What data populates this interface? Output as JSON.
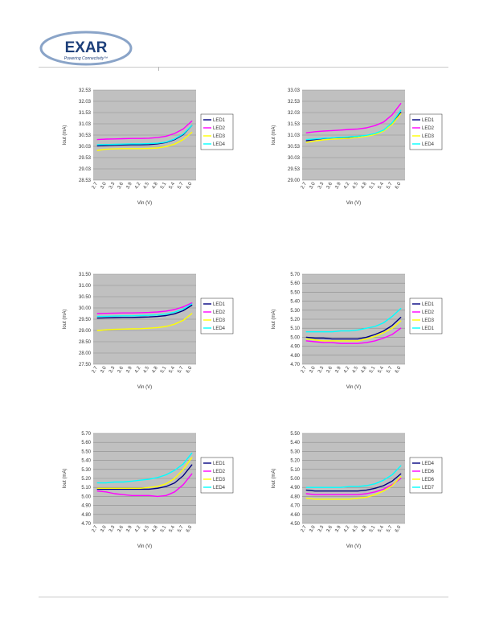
{
  "header": {
    "logo_text": "EXAR",
    "logo_tagline": "Powering Connectivity™",
    "logo_colors": {
      "ring": "#8aa4c8",
      "text": "#1d3f7a"
    }
  },
  "chart_data": [
    {
      "type": "line",
      "xlabel": "Vin (V)",
      "ylabel": "Iout (mA)",
      "ylim": [
        28.53,
        32.53
      ],
      "yticks": [
        "28.53",
        "29.03",
        "29.53",
        "30.03",
        "30.53",
        "31.03",
        "31.53",
        "32.03",
        "32.53"
      ],
      "categories": [
        "2.7",
        "3.0",
        "3.3",
        "3.6",
        "3.9",
        "4.2",
        "4.5",
        "4.8",
        "5.1",
        "5.4",
        "5.7",
        "6.0"
      ],
      "grid": true,
      "legend": "right",
      "series": [
        {
          "name": "LED1",
          "color": "#000080",
          "values": [
            30.05,
            30.07,
            30.08,
            30.09,
            30.1,
            30.1,
            30.11,
            30.14,
            30.2,
            30.33,
            30.55,
            30.95
          ]
        },
        {
          "name": "LED2",
          "color": "#ff00ff",
          "values": [
            30.33,
            30.35,
            30.36,
            30.37,
            30.38,
            30.38,
            30.39,
            30.42,
            30.48,
            30.6,
            30.8,
            31.15
          ]
        },
        {
          "name": "LED3",
          "color": "#ffff00",
          "values": [
            29.85,
            29.9,
            29.92,
            29.93,
            29.93,
            29.93,
            29.94,
            29.96,
            30.02,
            30.13,
            30.33,
            30.65
          ]
        },
        {
          "name": "LED4",
          "color": "#00ffff",
          "values": [
            30.1,
            30.11,
            30.12,
            30.13,
            30.14,
            30.14,
            30.15,
            30.17,
            30.22,
            30.36,
            30.58,
            30.95
          ]
        }
      ]
    },
    {
      "type": "line",
      "xlabel": "Vin (V)",
      "ylabel": "Iout (mA)",
      "ylim": [
        29.0,
        33.0
      ],
      "yticks": [
        "29.00",
        "29.53",
        "30.03",
        "30.53",
        "31.03",
        "31.53",
        "32.03",
        "32.53",
        "33.03"
      ],
      "categories": [
        "2.7",
        "3.0",
        "3.3",
        "3.6",
        "3.9",
        "4.2",
        "4.5",
        "4.8",
        "5.1",
        "5.4",
        "5.7",
        "6.0"
      ],
      "grid": true,
      "legend": "right",
      "series": [
        {
          "name": "LED1",
          "color": "#000080",
          "values": [
            30.75,
            30.8,
            30.85,
            30.87,
            30.88,
            30.9,
            30.93,
            30.97,
            31.05,
            31.2,
            31.5,
            32.0
          ]
        },
        {
          "name": "LED2",
          "color": "#ff00ff",
          "values": [
            31.1,
            31.15,
            31.18,
            31.2,
            31.22,
            31.25,
            31.27,
            31.32,
            31.42,
            31.58,
            31.9,
            32.4
          ]
        },
        {
          "name": "LED3",
          "color": "#ffff00",
          "values": [
            30.68,
            30.74,
            30.79,
            30.82,
            30.84,
            30.86,
            30.9,
            30.95,
            31.03,
            31.18,
            31.48,
            31.95
          ]
        },
        {
          "name": "LED4",
          "color": "#00ffff",
          "values": [
            30.8,
            30.83,
            30.86,
            30.88,
            30.9,
            30.92,
            30.95,
            30.99,
            31.07,
            31.22,
            31.55,
            32.1
          ]
        }
      ]
    },
    {
      "type": "line",
      "xlabel": "Vin (V)",
      "ylabel": "Iout (mA)",
      "ylim": [
        27.5,
        31.5
      ],
      "yticks": [
        "27.50",
        "28.00",
        "28.50",
        "29.00",
        "29.50",
        "30.00",
        "30.50",
        "31.00",
        "31.50"
      ],
      "categories": [
        "2.7",
        "3.0",
        "3.3",
        "3.6",
        "3.9",
        "4.2",
        "4.5",
        "4.8",
        "5.1",
        "5.4",
        "5.7",
        "6.0"
      ],
      "grid": true,
      "legend": "right",
      "series": [
        {
          "name": "LED1",
          "color": "#000080",
          "values": [
            29.55,
            29.56,
            29.57,
            29.58,
            29.58,
            29.59,
            29.6,
            29.62,
            29.66,
            29.74,
            29.88,
            30.12
          ]
        },
        {
          "name": "LED2",
          "color": "#ff00ff",
          "values": [
            29.75,
            29.76,
            29.77,
            29.78,
            29.78,
            29.79,
            29.8,
            29.82,
            29.86,
            29.93,
            30.05,
            30.22
          ]
        },
        {
          "name": "LED3",
          "color": "#ffff00",
          "values": [
            29.0,
            29.03,
            29.05,
            29.06,
            29.07,
            29.08,
            29.1,
            29.13,
            29.18,
            29.28,
            29.45,
            29.75
          ]
        },
        {
          "name": "LED4",
          "color": "#00ffff",
          "values": [
            29.62,
            29.63,
            29.64,
            29.65,
            29.65,
            29.66,
            29.67,
            29.69,
            29.73,
            29.81,
            29.95,
            30.18
          ]
        }
      ]
    },
    {
      "type": "line",
      "xlabel": "Vin (V)",
      "ylabel": "Iout (mA)",
      "ylim": [
        4.7,
        5.7
      ],
      "yticks": [
        "4.70",
        "4.80",
        "4.90",
        "5.00",
        "5.10",
        "5.20",
        "5.30",
        "5.40",
        "5.50",
        "5.60",
        "5.70"
      ],
      "categories": [
        "2.7",
        "3.0",
        "3.3",
        "3.6",
        "3.9",
        "4.2",
        "4.5",
        "4.8",
        "5.1",
        "5.4",
        "5.7",
        "6.0"
      ],
      "grid": true,
      "legend": "right",
      "series": [
        {
          "name": "LED1",
          "color": "#000080",
          "values": [
            5.0,
            4.99,
            4.99,
            4.98,
            4.98,
            4.98,
            4.98,
            5.0,
            5.03,
            5.07,
            5.13,
            5.22
          ]
        },
        {
          "name": "LED2",
          "color": "#ff00ff",
          "values": [
            4.96,
            4.95,
            4.94,
            4.94,
            4.93,
            4.93,
            4.93,
            4.94,
            4.96,
            4.99,
            5.03,
            5.1
          ]
        },
        {
          "name": "LED3",
          "color": "#ffff00",
          "values": [
            4.98,
            4.97,
            4.96,
            4.96,
            4.96,
            4.96,
            4.96,
            4.98,
            5.01,
            5.05,
            5.1,
            5.18
          ]
        },
        {
          "name": "LED1",
          "color": "#00ffff",
          "values": [
            5.06,
            5.06,
            5.06,
            5.06,
            5.07,
            5.07,
            5.08,
            5.1,
            5.12,
            5.16,
            5.23,
            5.32
          ]
        }
      ]
    },
    {
      "type": "line",
      "xlabel": "Vin (V)",
      "ylabel": "Iout (mA)",
      "ylim": [
        4.7,
        5.7
      ],
      "yticks": [
        "4.70",
        "4.80",
        "4.90",
        "5.00",
        "5.10",
        "5.20",
        "5.30",
        "5.40",
        "5.50",
        "5.60",
        "5.70"
      ],
      "categories": [
        "2.7",
        "3.0",
        "3.3",
        "3.6",
        "3.9",
        "4.2",
        "4.5",
        "4.8",
        "5.1",
        "5.4",
        "5.7",
        "6.0"
      ],
      "grid": true,
      "legend": "right",
      "series": [
        {
          "name": "LED1",
          "color": "#000080",
          "values": [
            5.08,
            5.08,
            5.08,
            5.08,
            5.08,
            5.08,
            5.08,
            5.09,
            5.11,
            5.15,
            5.23,
            5.35
          ]
        },
        {
          "name": "LED2",
          "color": "#ff00ff",
          "values": [
            5.06,
            5.05,
            5.03,
            5.02,
            5.01,
            5.01,
            5.01,
            5.0,
            5.01,
            5.05,
            5.13,
            5.25
          ]
        },
        {
          "name": "LED3",
          "color": "#ffff00",
          "values": [
            5.09,
            5.09,
            5.09,
            5.09,
            5.09,
            5.09,
            5.1,
            5.11,
            5.14,
            5.2,
            5.3,
            5.43
          ]
        },
        {
          "name": "LED4",
          "color": "#00ffff",
          "values": [
            5.15,
            5.15,
            5.16,
            5.16,
            5.17,
            5.18,
            5.19,
            5.21,
            5.24,
            5.29,
            5.36,
            5.48
          ]
        }
      ]
    },
    {
      "type": "line",
      "xlabel": "Vin (V)",
      "ylabel": "Iout (mA)",
      "ylim": [
        4.5,
        5.5
      ],
      "yticks": [
        "4.50",
        "4.60",
        "4.70",
        "4.80",
        "4.90",
        "5.00",
        "5.10",
        "5.20",
        "5.30",
        "5.40",
        "5.50"
      ],
      "categories": [
        "2.7",
        "3.0",
        "3.3",
        "3.6",
        "3.9",
        "4.2",
        "4.5",
        "4.8",
        "5.1",
        "5.4",
        "5.7",
        "6.0"
      ],
      "grid": true,
      "legend": "right",
      "series": [
        {
          "name": "LED4",
          "color": "#000080",
          "values": [
            4.87,
            4.86,
            4.86,
            4.86,
            4.86,
            4.86,
            4.86,
            4.87,
            4.89,
            4.92,
            4.97,
            5.05
          ]
        },
        {
          "name": "LED6",
          "color": "#ff00ff",
          "values": [
            4.83,
            4.82,
            4.82,
            4.82,
            4.82,
            4.82,
            4.82,
            4.83,
            4.85,
            4.88,
            4.93,
            5.0
          ]
        },
        {
          "name": "LED6",
          "color": "#ffff00",
          "values": [
            4.78,
            4.77,
            4.77,
            4.77,
            4.77,
            4.77,
            4.78,
            4.79,
            4.82,
            4.86,
            4.92,
            5.02
          ]
        },
        {
          "name": "LED7",
          "color": "#00ffff",
          "values": [
            4.9,
            4.9,
            4.9,
            4.9,
            4.9,
            4.91,
            4.91,
            4.92,
            4.94,
            4.98,
            5.04,
            5.14
          ]
        }
      ]
    }
  ]
}
